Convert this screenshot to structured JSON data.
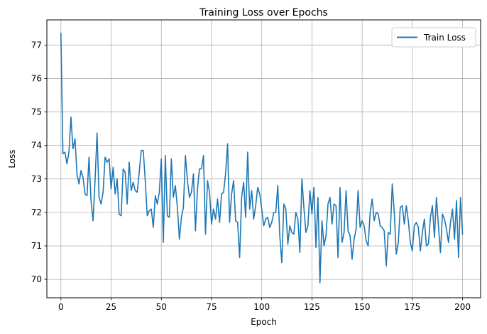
{
  "chart_data": {
    "type": "line",
    "title": "Training Loss over Epochs",
    "xlabel": "Epoch",
    "ylabel": "Loss",
    "xlim": [
      -7.0,
      209.0
    ],
    "ylim": [
      69.45,
      77.75
    ],
    "xticks": [
      0,
      25,
      50,
      75,
      100,
      125,
      150,
      175,
      200
    ],
    "yticks": [
      70,
      71,
      72,
      73,
      74,
      75,
      76,
      77
    ],
    "grid": true,
    "legend": {
      "position": "top-right"
    },
    "series": [
      {
        "name": "Train Loss",
        "color": "#1f77b4",
        "x_start": 0,
        "x_step": 1,
        "values": [
          77.35,
          73.75,
          73.8,
          73.45,
          73.8,
          74.85,
          73.9,
          74.2,
          73.15,
          72.85,
          73.25,
          73.05,
          72.55,
          72.5,
          73.65,
          72.35,
          71.75,
          72.95,
          74.37,
          72.45,
          72.25,
          72.6,
          73.65,
          73.5,
          73.6,
          72.7,
          73.35,
          72.55,
          73.0,
          71.95,
          71.9,
          73.3,
          73.2,
          72.25,
          73.5,
          72.65,
          72.9,
          72.65,
          72.6,
          73.2,
          73.85,
          73.85,
          72.95,
          71.9,
          72.05,
          72.1,
          71.55,
          72.5,
          72.25,
          72.6,
          73.6,
          71.1,
          73.7,
          71.9,
          71.85,
          73.6,
          72.45,
          72.8,
          72.15,
          71.2,
          71.85,
          72.15,
          73.7,
          72.95,
          72.45,
          72.6,
          73.15,
          71.45,
          72.7,
          73.3,
          73.3,
          73.7,
          71.35,
          72.95,
          72.6,
          71.65,
          72.1,
          71.8,
          72.4,
          71.7,
          72.55,
          72.6,
          73.15,
          74.05,
          71.7,
          72.55,
          72.95,
          71.75,
          71.7,
          70.65,
          72.45,
          72.9,
          71.85,
          73.8,
          72.1,
          72.65,
          71.8,
          72.2,
          72.75,
          72.55,
          72.1,
          71.6,
          71.8,
          71.85,
          71.55,
          71.7,
          72.0,
          72.0,
          72.8,
          71.3,
          70.5,
          72.25,
          72.1,
          71.05,
          71.6,
          71.4,
          71.35,
          72.0,
          71.8,
          70.8,
          73.0,
          72.15,
          71.4,
          71.6,
          72.65,
          71.95,
          72.75,
          70.95,
          72.45,
          69.9,
          71.75,
          71.0,
          71.3,
          72.25,
          72.45,
          71.65,
          72.25,
          72.2,
          70.65,
          72.75,
          71.1,
          71.4,
          72.65,
          71.45,
          71.3,
          70.6,
          71.2,
          71.5,
          72.65,
          71.55,
          71.75,
          71.6,
          71.15,
          71.0,
          72.0,
          72.4,
          71.75,
          72.0,
          71.95,
          71.6,
          71.55,
          71.45,
          70.4,
          71.4,
          71.35,
          72.85,
          72.0,
          70.75,
          71.1,
          72.15,
          72.2,
          71.65,
          72.2,
          71.75,
          71.1,
          70.85,
          71.6,
          71.7,
          71.55,
          70.85,
          71.4,
          71.8,
          71.0,
          71.05,
          71.85,
          72.2,
          71.25,
          72.45,
          71.6,
          70.8,
          71.95,
          71.8,
          71.5,
          71.1,
          71.7,
          72.1,
          71.2,
          72.35,
          70.65,
          72.45,
          71.35
        ]
      }
    ]
  }
}
